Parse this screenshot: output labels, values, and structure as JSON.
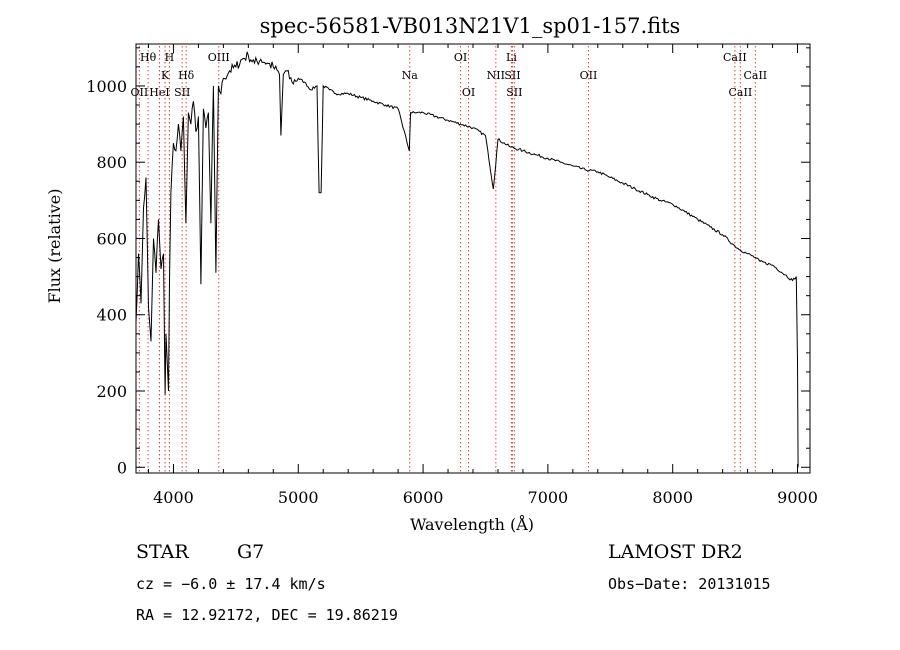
{
  "chart_data": {
    "type": "line",
    "title": "spec-56581-VB013N21V1_sp01-157.fits",
    "xlabel": "Wavelength (Å)",
    "ylabel": "Flux (relative)",
    "xlim": [
      3700,
      9100
    ],
    "ylim": [
      -15,
      1110
    ],
    "xticks": [
      4000,
      5000,
      6000,
      7000,
      8000,
      9000
    ],
    "yticks": [
      0,
      200,
      400,
      600,
      800,
      1000
    ],
    "grid": false,
    "series": [
      {
        "x": [
          3700,
          3720,
          3740,
          3760,
          3780,
          3800,
          3820,
          3840,
          3860,
          3880,
          3900,
          3920,
          3933,
          3940,
          3960,
          3968,
          3980,
          4000,
          4020,
          4040,
          4060,
          4080,
          4100,
          4120,
          4140,
          4160,
          4180,
          4200,
          4220,
          4240,
          4260,
          4280,
          4300,
          4320,
          4340,
          4360,
          4380,
          4400,
          4450,
          4500,
          4550,
          4600,
          4650,
          4700,
          4750,
          4800,
          4850,
          4861,
          4880,
          4900,
          4950,
          5000,
          5050,
          5100,
          5150,
          5167,
          5183,
          5200,
          5250,
          5300,
          5400,
          5500,
          5600,
          5700,
          5800,
          5890,
          5900,
          5950,
          6000,
          6100,
          6200,
          6300,
          6400,
          6500,
          6563,
          6600,
          6700,
          6800,
          6900,
          7000,
          7100,
          7200,
          7300,
          7400,
          7500,
          7600,
          7700,
          7800,
          7900,
          8000,
          8100,
          8200,
          8300,
          8400,
          8498,
          8542,
          8600,
          8662,
          8700,
          8800,
          8900,
          8960,
          8990,
          9000,
          9005
        ],
        "values": [
          380,
          560,
          430,
          680,
          760,
          420,
          330,
          600,
          510,
          650,
          520,
          560,
          190,
          350,
          200,
          490,
          720,
          850,
          830,
          900,
          830,
          920,
          640,
          930,
          900,
          960,
          880,
          920,
          480,
          940,
          890,
          930,
          640,
          1000,
          510,
          1000,
          980,
          1020,
          1040,
          1050,
          1070,
          1080,
          1060,
          1070,
          1060,
          1050,
          1030,
          870,
          1030,
          1040,
          1010,
          1020,
          1010,
          990,
          1000,
          720,
          720,
          1000,
          990,
          980,
          980,
          970,
          960,
          950,
          940,
          830,
          930,
          930,
          930,
          920,
          910,
          900,
          890,
          870,
          730,
          860,
          840,
          830,
          820,
          810,
          800,
          790,
          780,
          775,
          760,
          745,
          730,
          715,
          700,
          690,
          670,
          650,
          630,
          610,
          580,
          570,
          560,
          550,
          540,
          530,
          505,
          490,
          500,
          280,
          0
        ]
      }
    ],
    "lines": [
      {
        "label": "Hθ",
        "row": 0,
        "x": 3797
      },
      {
        "label": "OII",
        "row": 2,
        "x": 3727
      },
      {
        "label": "H",
        "row": 0,
        "x": 3968
      },
      {
        "label": "K",
        "row": 1,
        "x": 3933
      },
      {
        "label": "HeI",
        "row": 2,
        "x": 3888
      },
      {
        "label": "SII",
        "row": 2,
        "x": 4070
      },
      {
        "label": "Hδ",
        "row": 1,
        "x": 4102
      },
      {
        "label": "OIII",
        "row": 0,
        "x": 4363
      },
      {
        "label": "Na",
        "row": 1,
        "x": 5893
      },
      {
        "label": "OI",
        "row": 0,
        "x": 6300
      },
      {
        "label": "OI",
        "row": 2,
        "x": 6364
      },
      {
        "label": "Li",
        "row": 0,
        "x": 6708
      },
      {
        "label": "NII",
        "row": 1,
        "x": 6583
      },
      {
        "label": "SII",
        "row": 1,
        "x": 6716
      },
      {
        "label": "SII",
        "row": 2,
        "x": 6731
      },
      {
        "label": "OII",
        "row": 1,
        "x": 7325
      },
      {
        "label": "CaII",
        "row": 0,
        "x": 8498
      },
      {
        "label": "CaII",
        "row": 1,
        "x": 8662
      },
      {
        "label": "CaII",
        "row": 2,
        "x": 8542
      }
    ]
  },
  "info": {
    "class_label": "STAR",
    "subclass": "G7",
    "survey": "LAMOST DR2",
    "cz": "cz = −6.0 ± 17.4 km/s",
    "obs_date": "Obs−Date: 20131015",
    "radec": "RA =  12.92172, DEC =  19.86219"
  }
}
